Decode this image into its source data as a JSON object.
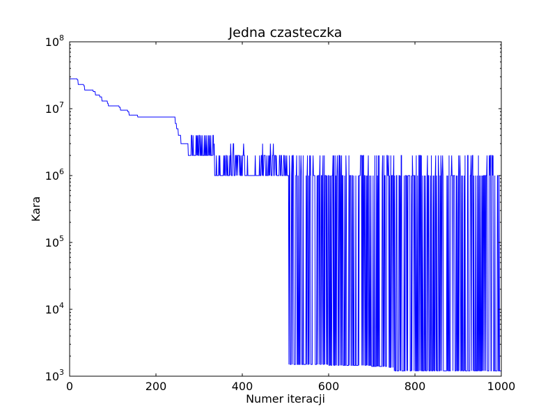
{
  "chart_data": {
    "type": "line",
    "title": "Jedna czasteczka",
    "xlabel": "Numer iteracji",
    "ylabel": "Kara",
    "xlim": [
      0,
      1000
    ],
    "ylim": [
      1000,
      100000000
    ],
    "yscale": "log",
    "grid": false,
    "line_color": "#0000ff",
    "x_ticks": [
      {
        "value": 0,
        "label": "0"
      },
      {
        "value": 200,
        "label": "200"
      },
      {
        "value": 400,
        "label": "400"
      },
      {
        "value": 600,
        "label": "600"
      },
      {
        "value": 800,
        "label": "800"
      },
      {
        "value": 1000,
        "label": "1000"
      }
    ],
    "y_ticks": [
      {
        "value": 1000,
        "base": "10",
        "exp": "3"
      },
      {
        "value": 10000,
        "base": "10",
        "exp": "4"
      },
      {
        "value": 100000,
        "base": "10",
        "exp": "5"
      },
      {
        "value": 1000000,
        "base": "10",
        "exp": "6"
      },
      {
        "value": 10000000,
        "base": "10",
        "exp": "7"
      },
      {
        "value": 100000000,
        "base": "10",
        "exp": "8"
      }
    ],
    "series": [
      {
        "values_desc": "piecewise step approximation of best cost per iteration",
        "points": [
          [
            0,
            28000000
          ],
          [
            18,
            27000000
          ],
          [
            20,
            23000000
          ],
          [
            33,
            22000000
          ],
          [
            35,
            19000000
          ],
          [
            55,
            18000000
          ],
          [
            60,
            16000000
          ],
          [
            70,
            15000000
          ],
          [
            75,
            13000000
          ],
          [
            88,
            12000000
          ],
          [
            90,
            11000000
          ],
          [
            115,
            10500000
          ],
          [
            118,
            9500000
          ],
          [
            135,
            9000000
          ],
          [
            138,
            8000000
          ],
          [
            155,
            8000000
          ],
          [
            158,
            7500000
          ],
          [
            240,
            7500000
          ],
          [
            245,
            6000000
          ],
          [
            248,
            5000000
          ],
          [
            252,
            4000000
          ],
          [
            258,
            3000000
          ],
          [
            270,
            3000000
          ],
          [
            275,
            2000000
          ],
          [
            330,
            2000000
          ],
          [
            335,
            1000000
          ],
          [
            400,
            1000000
          ],
          [
            490,
            1000000
          ],
          [
            505,
            1000000
          ],
          [
            508,
            1500
          ],
          [
            560,
            1500
          ],
          [
            600,
            1450
          ],
          [
            700,
            1400
          ],
          [
            740,
            1350
          ],
          [
            752,
            1200
          ],
          [
            1000,
            1200
          ]
        ]
      }
    ]
  }
}
